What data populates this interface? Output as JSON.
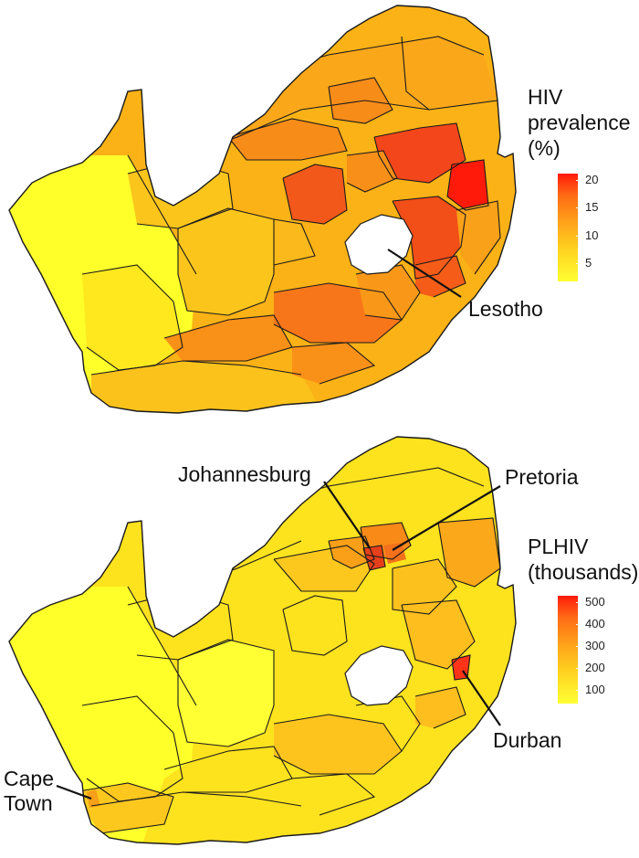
{
  "maps": [
    {
      "name": "hiv-prevalence-map",
      "legend": {
        "title_lines": [
          "HIV",
          "prevalence",
          "(%)"
        ],
        "ticks": [
          "20",
          "15",
          "10",
          "5"
        ],
        "low_color": "#ffff33",
        "high_color": "#ff1a0a"
      },
      "callouts": {
        "lesotho": "Lesotho"
      }
    },
    {
      "name": "plhiv-map",
      "legend": {
        "title_lines": [
          "PLHIV",
          "(thousands)"
        ],
        "ticks": [
          "500",
          "400",
          "300",
          "200",
          "100"
        ],
        "low_color": "#ffff33",
        "high_color": "#ff1a0a"
      },
      "callouts": {
        "johannesburg": "Johannesburg",
        "pretoria": "Pretoria",
        "durban": "Durban",
        "cape_town_lines": [
          "Cape",
          "Town"
        ]
      }
    }
  ]
}
